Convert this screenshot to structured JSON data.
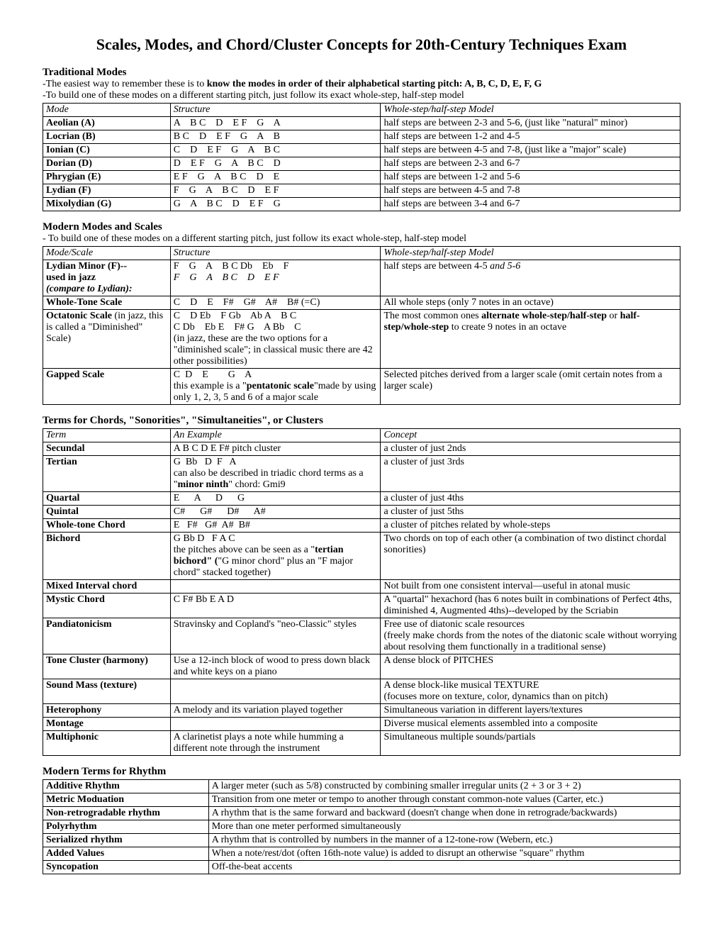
{
  "title": "Scales, Modes, and Chord/Cluster Concepts for 20th-Century Techniques Exam",
  "trad": {
    "heading": "Traditional Modes",
    "note1a": "-The easiest way to remember these is to ",
    "note1b": "know the modes in order of their alphabetical starting pitch:  A, B, C, D, E, F, G",
    "note2": "-To build one of these modes on a different starting pitch, just follow its exact whole-step, half-step model",
    "h1": "Mode",
    "h2": "Structure",
    "h3": "Whole-step/half-step Model",
    "rows": [
      {
        "m": "Aeolian (A)",
        "s": "A    B C    D    E F    G    A",
        "d": "half steps are between 2-3 and 5-6, (just like \"natural\" minor)"
      },
      {
        "m": "Locrian (B)",
        "s": "B C    D    E F    G    A    B",
        "d": "half steps are between 1-2 and 4-5"
      },
      {
        "m": "Ionian (C)",
        "s": "C    D    E F    G    A    B C",
        "d": "half steps are between 4-5 and 7-8, (just like a \"major\" scale)"
      },
      {
        "m": "Dorian (D)",
        "s": "D    E F    G    A    B C    D",
        "d": "half steps are between 2-3 and 6-7"
      },
      {
        "m": "Phrygian (E)",
        "s": "E F    G    A    B C    D    E",
        "d": "half steps are between 1-2 and 5-6"
      },
      {
        "m": "Lydian (F)",
        "s": "F    G    A    B C    D    E F",
        "d": "half steps are between 4-5 and 7-8"
      },
      {
        "m": "Mixolydian (G)",
        "s": "G    A    B C    D    E F    G",
        "d": "half steps are between 3-4 and 6-7"
      }
    ]
  },
  "modern": {
    "heading": "Modern Modes and Scales",
    "note": "- To build one of these modes on a different starting pitch, just follow its exact whole-step, half-step model",
    "h1": "Mode/Scale",
    "h2": "Structure",
    "h3": "Whole-step/half-step Model",
    "r0": {
      "m1": "Lydian Minor (F)--",
      "m2": "used in jazz",
      "m3": "(compare to Lydian):",
      "s1": "F    G    A    B C Db    Eb    F",
      "s2": "F    G    A    B C    D    E F",
      "d": "half steps are between 4-5 "
    },
    "r0d2": "and 5-6",
    "r1": {
      "m": "Whole-Tone Scale",
      "s": "C    D    E    F#    G#    A#    B# (=C)",
      "d": "All whole steps (only 7 notes in an octave)"
    },
    "r2": {
      "m1": "Octatonic Scale",
      "m1b": " (in jazz, this is called a \"Diminished\" Scale)",
      "s1": "C    D Eb    F Gb    Ab A    B C",
      "s2": "C Db    Eb E    F# G    A Bb    C",
      "s3": "(in jazz, these are the two options for a \"diminished scale\"; in classical music there are 42 other possibilities)",
      "d1": "The most common ones ",
      "d1b": "alternate whole-step/half-step",
      "d1c": " or ",
      "d1d": "half-step/whole-step",
      "d1e": " to create 9 notes in an octave"
    },
    "r3": {
      "m": "Gapped Scale",
      "s1": "C  D    E        G    A",
      "s2": "this example is a \"",
      "s2b": "pentatonic scale",
      "s2c": "\"made by using only 1, 2, 3, 5 and 6 of a major scale",
      "d": "Selected pitches derived from a larger scale (omit certain notes from a larger scale)"
    }
  },
  "chords": {
    "heading": "Terms for Chords, \"Sonorities\", \"Simultaneities\", or Clusters",
    "h1": "Term",
    "h2": "An Example",
    "h3": "Concept",
    "rows": [
      {
        "t": "Secundal",
        "e": "A B C D E F# pitch cluster",
        "c": "a cluster of just 2nds"
      },
      {
        "t": "Tertian",
        "e1": "G  Bb   D  F   A",
        "e2": "can also be described in triadic chord terms as a \"",
        "e2b": "minor ninth",
        "e2c": "\" chord:  Gmi9",
        "c": "a cluster of just 3rds"
      },
      {
        "t": "Quartal",
        "e": "E      A      D      G",
        "c": "a cluster of just 4ths"
      },
      {
        "t": "Quintal",
        "e": "C#      G#      D#      A#",
        "c": "a cluster of just 5ths"
      },
      {
        "t": "Whole-tone Chord",
        "e": "E   F#   G#  A#  B#",
        "c": "a cluster of pitches related by whole-steps"
      },
      {
        "t": "Bichord",
        "e1": "G Bb D   F A C",
        "e2": "the pitches above can be seen as a \"",
        "e2b": "tertian bichord\" (",
        "e2c": "\"G minor chord\" plus an \"F major chord\" stacked together)",
        "c": "Two chords on top of each other (a combination of two distinct chordal sonorities)"
      },
      {
        "t": "Mixed Interval chord",
        "e": "",
        "c": "Not built from one consistent interval—useful in atonal music"
      },
      {
        "t": "Mystic Chord",
        "e": "C  F#  Bb  E  A  D",
        "c": "A \"quartal\" hexachord (has 6 notes built in combinations of Perfect 4ths, diminished 4, Augmented 4ths)--developed by the Scriabin"
      },
      {
        "t": "Pandiatonicism",
        "e": "Stravinsky and Copland's \"neo-Classic\" styles",
        "c": "Free use of diatonic scale resources\n(freely make chords from the notes of the diatonic scale without worrying about resolving them functionally in a traditional sense)"
      },
      {
        "t": "Tone Cluster (harmony)",
        "e": "Use a 12-inch block of wood to press down black and white keys on a piano",
        "c": "A dense block of PITCHES"
      },
      {
        "t": "Sound Mass (texture)",
        "e": "",
        "c": "A dense block-like musical TEXTURE\n(focuses more on texture, color, dynamics than on pitch)"
      },
      {
        "t": "Heterophony",
        "e": "A melody and its variation played together",
        "c": "Simultaneous variation in different layers/textures"
      },
      {
        "t": "Montage",
        "e": "",
        "c": "Diverse musical elements assembled into a composite"
      },
      {
        "t": "Multiphonic",
        "e": "A clarinetist plays a note while humming a different note through the instrument",
        "c": "Simultaneous multiple sounds/partials"
      }
    ]
  },
  "rhythm": {
    "heading": "Modern Terms for Rhythm",
    "rows": [
      {
        "t": "Additive Rhythm",
        "d": "A larger meter (such as 5/8) constructed by combining smaller irregular units (2 + 3  or 3 + 2)"
      },
      {
        "t": "Metric Moduation",
        "d": "Transition from one meter or tempo to another through constant common-note values (Carter, etc.)"
      },
      {
        "t": "Non-retrogradable rhythm",
        "d": "A rhythm that is the same forward and backward (doesn't change when done in retrograde/backwards)"
      },
      {
        "t": "Polyrhythm",
        "d": "More than one meter performed simultaneously"
      },
      {
        "t": "Serialized rhythm",
        "d": "A rhythm that is controlled by numbers in the manner of a 12-tone-row (Webern, etc.)"
      },
      {
        "t": "Added Values",
        "d": "When a note/rest/dot (often 16th-note value) is added to disrupt an otherwise \"square\" rhythm"
      },
      {
        "t": "Syncopation",
        "d": "Off-the-beat accents"
      }
    ]
  }
}
